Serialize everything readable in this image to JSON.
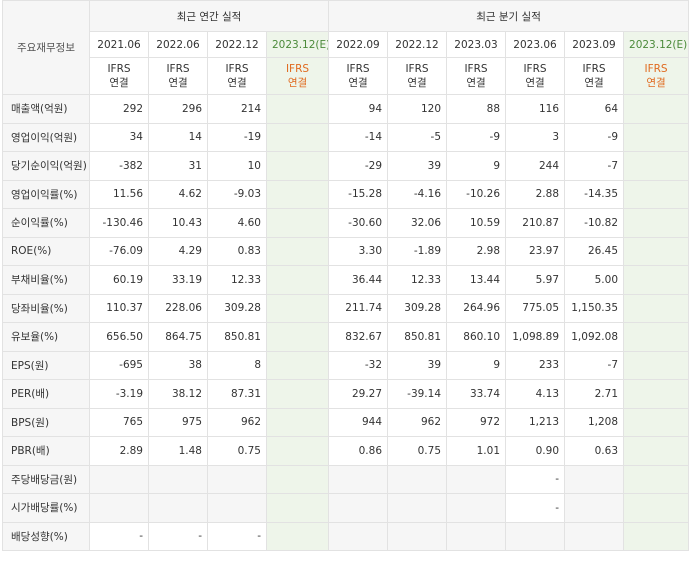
{
  "header": {
    "row_label": "주요재무정보",
    "annual_group": "최근 연간 실적",
    "quarterly_group": "최근 분기 실적"
  },
  "periods": {
    "annual": [
      "2021.06",
      "2022.06",
      "2022.12",
      "2023.12(E)"
    ],
    "quarterly": [
      "2022.09",
      "2022.12",
      "2023.03",
      "2023.06",
      "2023.09",
      "2023.12(E)"
    ]
  },
  "standard": {
    "line1": "IFRS",
    "line2": "연결"
  },
  "rows": [
    {
      "label": "매출액(억원)",
      "annual": [
        "292",
        "296",
        "214",
        ""
      ],
      "quarterly": [
        "94",
        "120",
        "88",
        "116",
        "64",
        ""
      ]
    },
    {
      "label": "영업이익(억원)",
      "annual": [
        "34",
        "14",
        "-19",
        ""
      ],
      "quarterly": [
        "-14",
        "-5",
        "-9",
        "3",
        "-9",
        ""
      ]
    },
    {
      "label": "당기순이익(억원)",
      "annual": [
        "-382",
        "31",
        "10",
        ""
      ],
      "quarterly": [
        "-29",
        "39",
        "9",
        "244",
        "-7",
        ""
      ]
    },
    {
      "label": "영업이익률(%)",
      "annual": [
        "11.56",
        "4.62",
        "-9.03",
        ""
      ],
      "quarterly": [
        "-15.28",
        "-4.16",
        "-10.26",
        "2.88",
        "-14.35",
        ""
      ]
    },
    {
      "label": "순이익률(%)",
      "annual": [
        "-130.46",
        "10.43",
        "4.60",
        ""
      ],
      "quarterly": [
        "-30.60",
        "32.06",
        "10.59",
        "210.87",
        "-10.82",
        ""
      ]
    },
    {
      "label": "ROE(%)",
      "annual": [
        "-76.09",
        "4.29",
        "0.83",
        ""
      ],
      "quarterly": [
        "3.30",
        "-1.89",
        "2.98",
        "23.97",
        "26.45",
        ""
      ]
    },
    {
      "label": "부채비율(%)",
      "annual": [
        "60.19",
        "33.19",
        "12.33",
        ""
      ],
      "quarterly": [
        "36.44",
        "12.33",
        "13.44",
        "5.97",
        "5.00",
        ""
      ]
    },
    {
      "label": "당좌비율(%)",
      "annual": [
        "110.37",
        "228.06",
        "309.28",
        ""
      ],
      "quarterly": [
        "211.74",
        "309.28",
        "264.96",
        "775.05",
        "1,150.35",
        ""
      ]
    },
    {
      "label": "유보율(%)",
      "annual": [
        "656.50",
        "864.75",
        "850.81",
        ""
      ],
      "quarterly": [
        "832.67",
        "850.81",
        "860.10",
        "1,098.89",
        "1,092.08",
        ""
      ]
    },
    {
      "label": "EPS(원)",
      "annual": [
        "-695",
        "38",
        "8",
        ""
      ],
      "quarterly": [
        "-32",
        "39",
        "9",
        "233",
        "-7",
        ""
      ]
    },
    {
      "label": "PER(배)",
      "annual": [
        "-3.19",
        "38.12",
        "87.31",
        ""
      ],
      "quarterly": [
        "29.27",
        "-39.14",
        "33.74",
        "4.13",
        "2.71",
        ""
      ]
    },
    {
      "label": "BPS(원)",
      "annual": [
        "765",
        "975",
        "962",
        ""
      ],
      "quarterly": [
        "944",
        "962",
        "972",
        "1,213",
        "1,208",
        ""
      ]
    },
    {
      "label": "PBR(배)",
      "annual": [
        "2.89",
        "1.48",
        "0.75",
        ""
      ],
      "quarterly": [
        "0.86",
        "0.75",
        "1.01",
        "0.90",
        "0.63",
        ""
      ]
    },
    {
      "label": "주당배당금(원)",
      "annual": [
        "",
        "",
        "",
        ""
      ],
      "quarterly": [
        "",
        "",
        "",
        "-",
        "",
        ""
      ]
    },
    {
      "label": "시가배당률(%)",
      "annual": [
        "",
        "",
        "",
        ""
      ],
      "quarterly": [
        "",
        "",
        "",
        "-",
        "",
        ""
      ]
    },
    {
      "label": "배당성향(%)",
      "annual": [
        "-",
        "-",
        "-",
        ""
      ],
      "quarterly": [
        "",
        "",
        "",
        "",
        "",
        ""
      ]
    }
  ],
  "colors": {
    "negative": "#e4302f",
    "standard_label": "#e06a1f",
    "estimate_bg": "#eef5ea"
  }
}
